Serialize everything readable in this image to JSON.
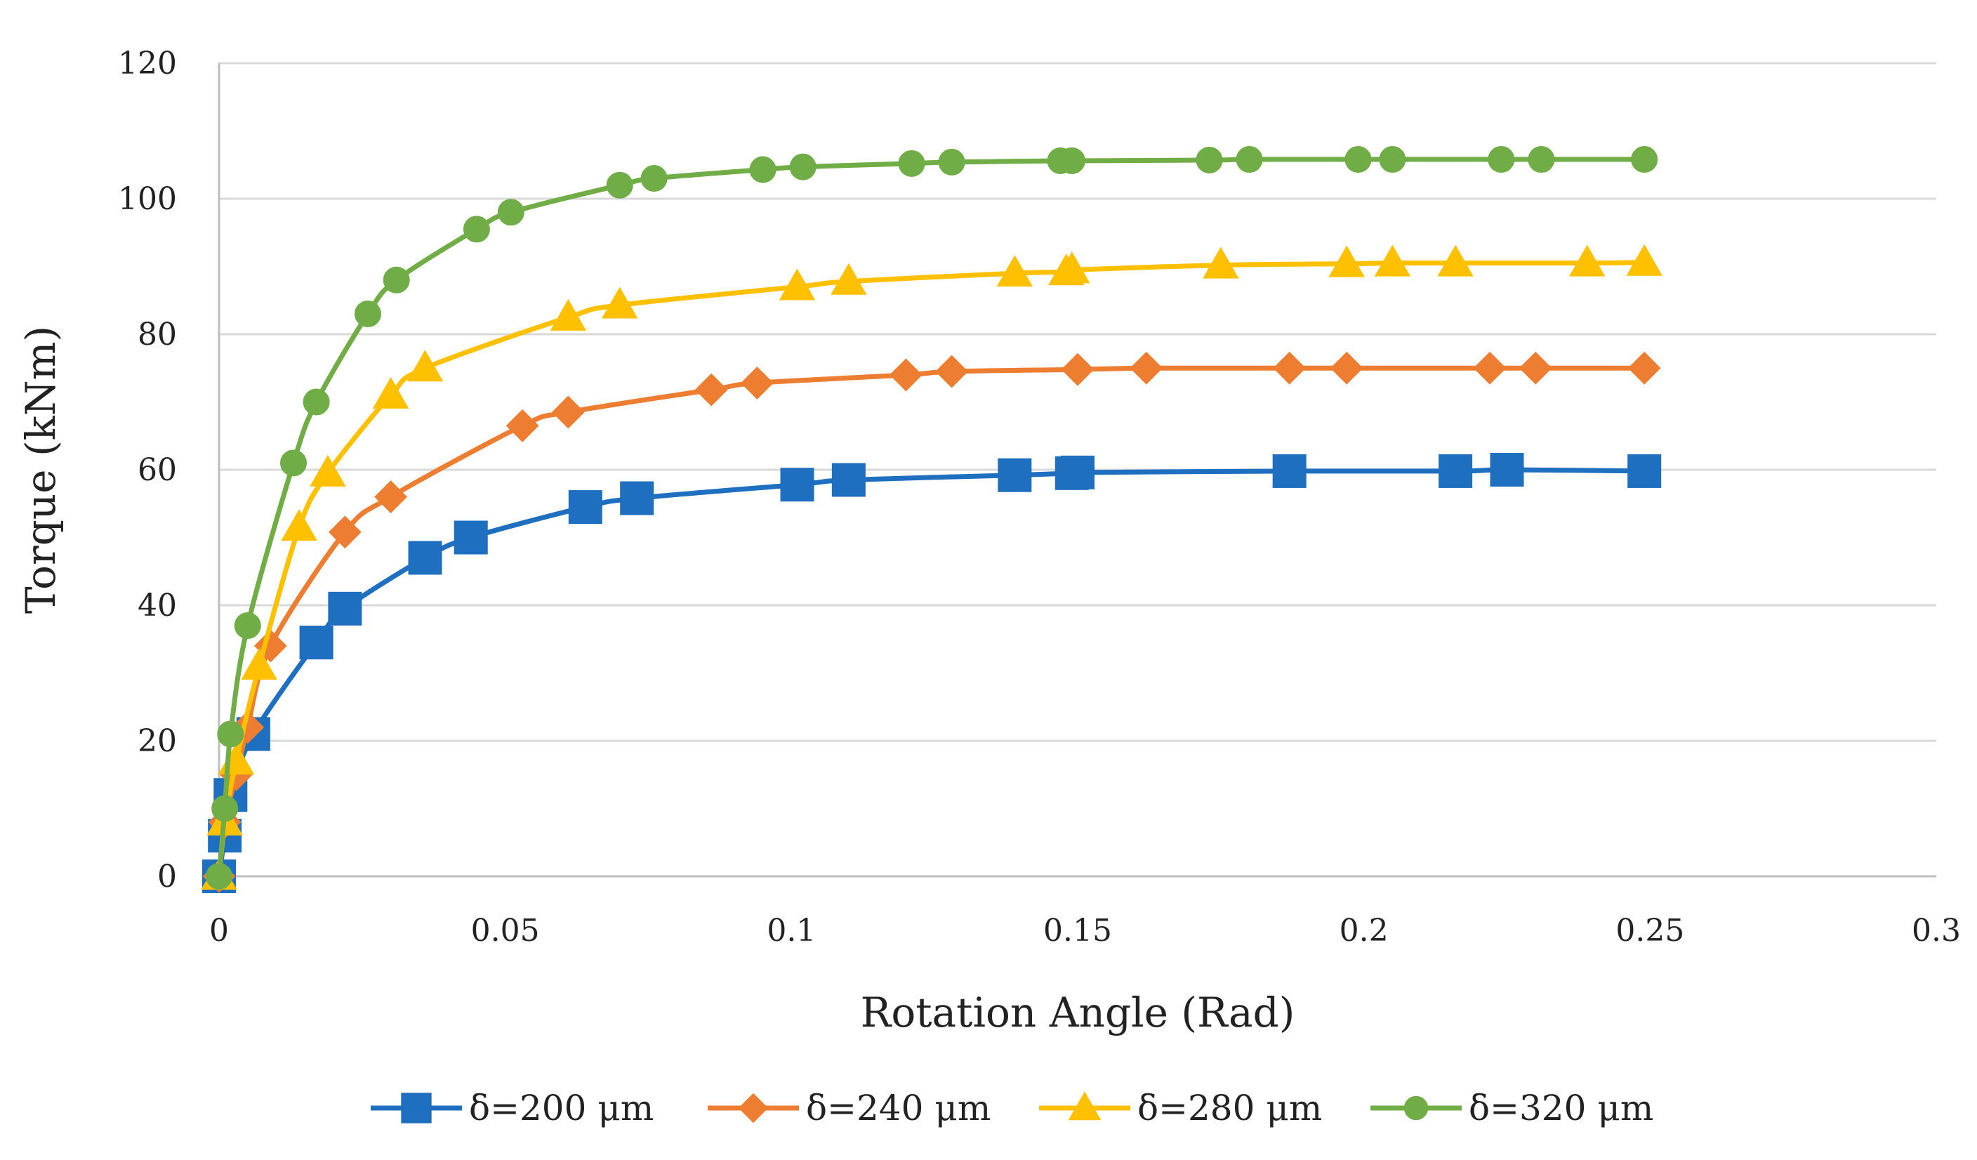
{
  "chart_data": {
    "type": "line",
    "title": "",
    "xlabel": "Rotation Angle (Rad)",
    "ylabel": "Torque (kNm)",
    "xlim": [
      0,
      0.3
    ],
    "ylim": [
      0,
      120
    ],
    "x_ticks": [
      0,
      0.05,
      0.1,
      0.15,
      0.2,
      0.25,
      0.3
    ],
    "x_tick_labels": [
      "0",
      "0.05",
      "0.1",
      "0.15",
      "0.2",
      "0.25",
      "0.3"
    ],
    "y_ticks": [
      0,
      20,
      40,
      60,
      80,
      100,
      120
    ],
    "y_tick_labels": [
      "0",
      "20",
      "40",
      "60",
      "80",
      "100",
      "120"
    ],
    "grid": true,
    "legend_position": "bottom",
    "series": [
      {
        "name": "δ=200 μm",
        "color": "#1f6fc0",
        "marker": "square",
        "points": [
          [
            0,
            0
          ],
          [
            0.001,
            6
          ],
          [
            0.002,
            12
          ],
          [
            0.006,
            21
          ],
          [
            0.017,
            34.5
          ],
          [
            0.022,
            39.5
          ],
          [
            0.036,
            47
          ],
          [
            0.044,
            50
          ],
          [
            0.064,
            54.5
          ],
          [
            0.073,
            55.8
          ],
          [
            0.101,
            57.8
          ],
          [
            0.11,
            58.5
          ],
          [
            0.139,
            59.2
          ],
          [
            0.149,
            59.5
          ],
          [
            0.15,
            59.6
          ],
          [
            0.187,
            59.8
          ],
          [
            0.216,
            59.8
          ],
          [
            0.225,
            60.0
          ],
          [
            0.249,
            59.8
          ]
        ]
      },
      {
        "name": "δ=240 μm",
        "color": "#ed7d31",
        "marker": "diamond",
        "points": [
          [
            0,
            0
          ],
          [
            0.001,
            8
          ],
          [
            0.003,
            15
          ],
          [
            0.005,
            22
          ],
          [
            0.009,
            34
          ],
          [
            0.022,
            50.8
          ],
          [
            0.03,
            56
          ],
          [
            0.053,
            66.5
          ],
          [
            0.061,
            68.5
          ],
          [
            0.086,
            71.8
          ],
          [
            0.094,
            72.8
          ],
          [
            0.12,
            74
          ],
          [
            0.128,
            74.5
          ],
          [
            0.15,
            74.8
          ],
          [
            0.162,
            75
          ],
          [
            0.187,
            75
          ],
          [
            0.197,
            75
          ],
          [
            0.222,
            75
          ],
          [
            0.23,
            75
          ],
          [
            0.249,
            75
          ]
        ]
      },
      {
        "name": "δ=280 μm",
        "color": "#ffc000",
        "marker": "triangle",
        "points": [
          [
            0,
            0
          ],
          [
            0.001,
            8
          ],
          [
            0.003,
            17
          ],
          [
            0.007,
            31
          ],
          [
            0.014,
            51.5
          ],
          [
            0.019,
            59.5
          ],
          [
            0.03,
            71
          ],
          [
            0.036,
            75
          ],
          [
            0.061,
            82.5
          ],
          [
            0.07,
            84.3
          ],
          [
            0.101,
            87
          ],
          [
            0.11,
            87.8
          ],
          [
            0.139,
            89
          ],
          [
            0.148,
            89.2
          ],
          [
            0.149,
            89.5
          ],
          [
            0.175,
            90.2
          ],
          [
            0.197,
            90.4
          ],
          [
            0.205,
            90.5
          ],
          [
            0.216,
            90.5
          ],
          [
            0.239,
            90.5
          ],
          [
            0.249,
            90.6
          ]
        ]
      },
      {
        "name": "δ=320 μm",
        "color": "#70ad47",
        "marker": "circle",
        "points": [
          [
            0,
            0
          ],
          [
            0.001,
            10
          ],
          [
            0.002,
            21
          ],
          [
            0.005,
            37
          ],
          [
            0.013,
            61
          ],
          [
            0.017,
            70
          ],
          [
            0.026,
            83
          ],
          [
            0.031,
            88
          ],
          [
            0.045,
            95.5
          ],
          [
            0.051,
            98
          ],
          [
            0.07,
            102
          ],
          [
            0.076,
            103
          ],
          [
            0.095,
            104.3
          ],
          [
            0.102,
            104.7
          ],
          [
            0.121,
            105.2
          ],
          [
            0.128,
            105.4
          ],
          [
            0.147,
            105.6
          ],
          [
            0.149,
            105.6
          ],
          [
            0.173,
            105.7
          ],
          [
            0.18,
            105.8
          ],
          [
            0.199,
            105.8
          ],
          [
            0.205,
            105.8
          ],
          [
            0.224,
            105.8
          ],
          [
            0.231,
            105.8
          ],
          [
            0.249,
            105.8
          ]
        ]
      }
    ]
  }
}
